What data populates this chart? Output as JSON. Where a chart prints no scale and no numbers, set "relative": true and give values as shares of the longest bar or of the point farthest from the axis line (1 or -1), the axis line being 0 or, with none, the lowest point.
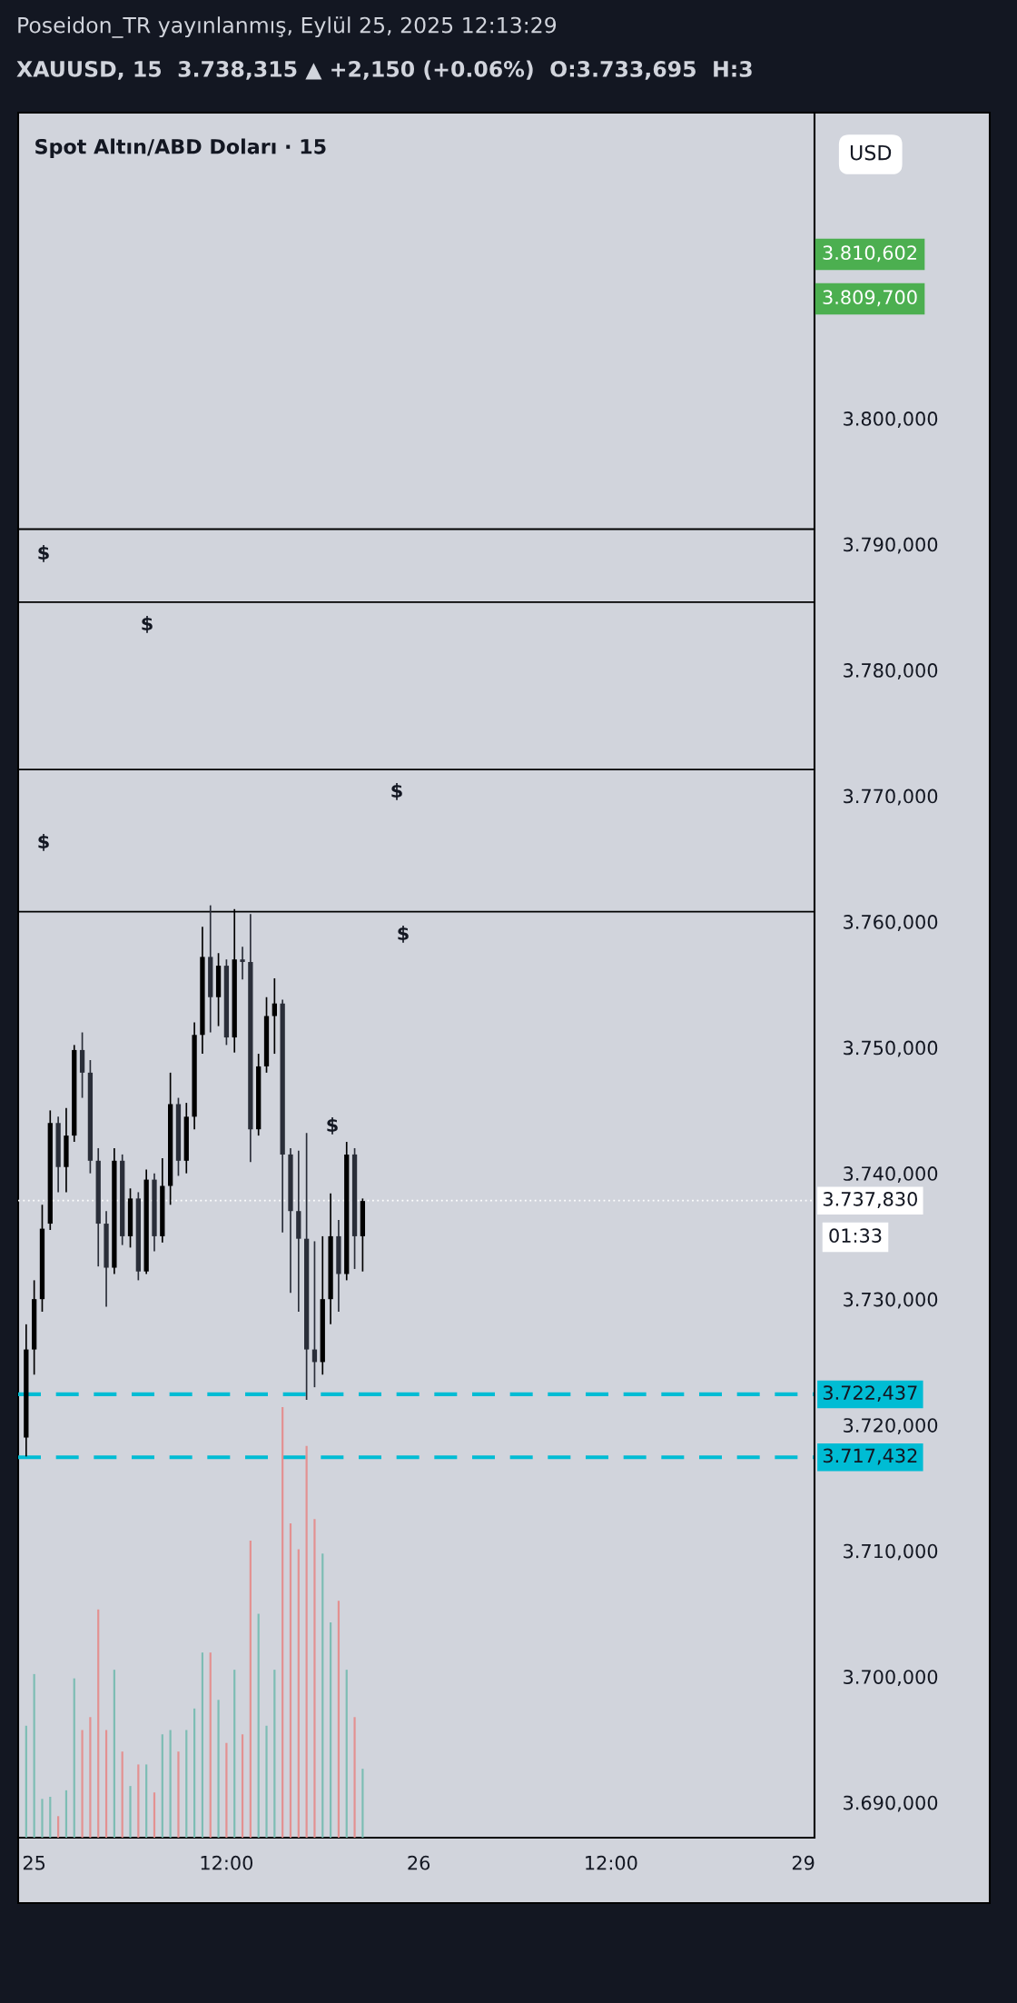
{
  "chart_data": [
    {
      "type": "candlestick",
      "title": "Spot Altın/ABD Doları · 15",
      "annotations": [
        "Poseidon_TR yayınlanmış, Eylül 25, 2025 12:13:29",
        "XAUUSD, 15  3.738,315 ▲ +2,150 (+0.06%)  O:3.733,695  H:3",
        "USD",
        "01:33",
        "$",
        "$",
        "$",
        "$",
        "$",
        "$",
        "3.810,602",
        "3.809,700"
      ],
      "categories": [
        null,
        "25",
        null,
        null,
        null,
        null,
        null,
        null,
        null,
        null,
        null,
        null,
        null,
        null,
        null,
        null,
        null,
        null,
        null,
        null,
        null,
        null,
        null,
        null,
        null,
        "12:00",
        null,
        null,
        null,
        null,
        null,
        null,
        null,
        null,
        null,
        null,
        null,
        null,
        null,
        null,
        null,
        null,
        null,
        null,
        null,
        null,
        null,
        null,
        null,
        "26",
        null,
        null,
        null,
        null,
        null,
        null,
        null,
        null,
        null,
        null,
        null,
        null,
        null,
        null,
        null,
        null,
        null,
        null,
        null,
        null,
        null,
        null,
        null,
        "12:00",
        null,
        null,
        null,
        null,
        null,
        null,
        null,
        null,
        null,
        null,
        null,
        null,
        null,
        null,
        null,
        null,
        null,
        null,
        null,
        null,
        null,
        null,
        null,
        "29",
        null
      ],
      "ohlc": [
        [
          3719,
          3728,
          3717.5,
          3726
        ],
        [
          3726,
          3731.5,
          3724,
          3730
        ],
        [
          3730,
          3737.5,
          3729,
          3735.6
        ],
        [
          3736,
          3745,
          3735.5,
          3744
        ],
        [
          3744,
          3744.5,
          3738.5,
          3740.5
        ],
        [
          3740.5,
          3745.2,
          3738.5,
          3743
        ],
        [
          3743,
          3750.2,
          3742.5,
          3749.8
        ],
        [
          3749.8,
          3751.2,
          3746,
          3748
        ],
        [
          3748,
          3749,
          3740,
          3741
        ],
        [
          3741,
          3742,
          3732.6,
          3736
        ],
        [
          3736,
          3737,
          3729.4,
          3732.5
        ],
        [
          3732.5,
          3742,
          3732,
          3741
        ],
        [
          3741,
          3741.5,
          3734.3,
          3735
        ],
        [
          3735,
          3738.8,
          3734.1,
          3738
        ],
        [
          3738,
          3738.5,
          3731.5,
          3732.2
        ],
        [
          3732.2,
          3740.3,
          3732,
          3739.5
        ],
        [
          3739.5,
          3740,
          3733.8,
          3735
        ],
        [
          3735,
          3741.2,
          3734.5,
          3739
        ],
        [
          3739,
          3748,
          3737.5,
          3745.5
        ],
        [
          3745.5,
          3746,
          3739.8,
          3741
        ],
        [
          3741,
          3745.6,
          3740,
          3744.5
        ],
        [
          3744.5,
          3752,
          3743.5,
          3751
        ],
        [
          3751,
          3759.6,
          3749.5,
          3757.2
        ],
        [
          3757.2,
          3761.3,
          3751.2,
          3754
        ],
        [
          3754,
          3757.5,
          3751.7,
          3756.5
        ],
        [
          3756.5,
          3757,
          3750.2,
          3750.8
        ],
        [
          3750.8,
          3761,
          3749.6,
          3757
        ],
        [
          3757,
          3758,
          3755.4,
          3756.8
        ],
        [
          3756.8,
          3760.6,
          3740.9,
          3743.5
        ],
        [
          3743.5,
          3749.5,
          3743,
          3748.5
        ],
        [
          3748.5,
          3754,
          3748,
          3752.5
        ],
        [
          3752.5,
          3755.5,
          3749.5,
          3753.5
        ],
        [
          3753.5,
          3753.8,
          3735.3,
          3741.5
        ],
        [
          3741.5,
          3742,
          3730.5,
          3737
        ],
        [
          3737,
          3741.8,
          3729,
          3734.8
        ],
        [
          3734.8,
          3743.2,
          3722,
          3726
        ],
        [
          3726,
          3734.6,
          3723,
          3725
        ],
        [
          3725,
          3735,
          3724,
          3730
        ],
        [
          3730,
          3738.4,
          3728,
          3735
        ],
        [
          3735,
          3736.3,
          3729,
          3732
        ],
        [
          3732,
          3742.5,
          3731.5,
          3741.5
        ],
        [
          3741.5,
          3742,
          3732.4,
          3735
        ],
        [
          3735,
          3738,
          3732.2,
          3737.8
        ],
        null,
        null,
        null,
        null,
        null,
        null,
        null,
        null,
        null,
        null,
        null,
        null,
        null,
        null,
        null,
        null,
        null,
        null,
        null,
        null,
        null,
        null,
        null,
        null,
        null,
        null,
        null,
        null,
        null,
        null,
        null,
        null,
        null,
        null,
        null,
        null,
        null,
        null,
        null,
        null,
        null,
        null,
        null,
        null,
        null,
        null,
        null,
        null,
        null,
        null,
        null,
        null,
        null,
        null,
        null,
        null
      ],
      "colors": [
        "#000000",
        "#000000",
        "#000000",
        "#000000",
        "#2a2e39",
        "#000000",
        "#000000",
        "#2a2e39",
        "#2a2e39",
        "#2a2e39",
        "#2a2e39",
        "#000000",
        "#2a2e39",
        "#000000",
        "#2a2e39",
        "#000000",
        "#2a2e39",
        "#000000",
        "#000000",
        "#2a2e39",
        "#000000",
        "#000000",
        "#000000",
        "#2a2e39",
        "#000000",
        "#2a2e39",
        "#000000",
        "#2a2e39",
        "#2a2e39",
        "#000000",
        "#000000",
        "#000000",
        "#2a2e39",
        "#2a2e39",
        "#2a2e39",
        "#2a2e39",
        "#2a2e39",
        "#000000",
        "#000000",
        "#2a2e39",
        "#000000",
        "#2a2e39",
        "#000000",
        null,
        null,
        null,
        null,
        null,
        null,
        null,
        null,
        null,
        null,
        null,
        null,
        null,
        null,
        null,
        null,
        null,
        null,
        null,
        null,
        null,
        null,
        null,
        null,
        null,
        null,
        null,
        null,
        null,
        null,
        null,
        null,
        null,
        null,
        null,
        null,
        null,
        null,
        null,
        null,
        null,
        null,
        null,
        null,
        null,
        null,
        null,
        null,
        null,
        null,
        null,
        null,
        null,
        null,
        null,
        null
      ],
      "ylim": [
        3687.2,
        3824.3
      ],
      "yticks": [
        {
          "value": 3690,
          "label": "3.690,000"
        },
        {
          "value": 3700,
          "label": "3.700,000"
        },
        {
          "value": 3710,
          "label": "3.710,000"
        },
        {
          "value": 3720,
          "label": "3.720,000"
        },
        {
          "value": 3730,
          "label": "3.730,000"
        },
        {
          "value": 3740,
          "label": "3.740,000"
        },
        {
          "value": 3750,
          "label": "3.750,000"
        },
        {
          "value": 3760,
          "label": "3.760,000"
        },
        {
          "value": 3770,
          "label": "3.770,000"
        },
        {
          "value": 3780,
          "label": "3.780,000"
        },
        {
          "value": 3790,
          "label": "3.790,000"
        },
        {
          "value": 3800,
          "label": "3.800,000"
        }
      ],
      "ref_lines": [
        {
          "axis": "y",
          "value": 3722.437,
          "label": "3.722,437",
          "color": "#00bcd4",
          "line_style": "dashed"
        },
        {
          "axis": "y",
          "value": 3717.432,
          "label": "3.717,432",
          "color": "#00bcd4",
          "line_style": "dashed"
        },
        {
          "axis": "y",
          "value": 3737.83,
          "label": "3.737,830",
          "color": "#ffffff",
          "line_style": "dotted"
        },
        {
          "axis": "y",
          "value": 3791.2,
          "color": "#000000",
          "line_style": "solid"
        },
        {
          "axis": "y",
          "value": 3785.4,
          "color": "#000000",
          "line_style": "solid"
        },
        {
          "axis": "y",
          "value": 3772.1,
          "color": "#000000",
          "line_style": "solid"
        },
        {
          "axis": "y",
          "value": 3760.8,
          "color": "#000000",
          "line_style": "solid"
        }
      ],
      "grid": false
    },
    {
      "type": "bar",
      "relative": true,
      "categories": [
        null,
        null,
        null,
        null,
        null,
        null,
        null,
        null,
        null,
        null,
        null,
        null,
        null,
        null,
        null,
        null,
        null,
        null,
        null,
        null,
        null,
        null,
        null,
        null,
        null,
        null,
        null,
        null,
        null,
        null,
        null,
        null,
        null,
        null,
        null,
        null,
        null,
        null,
        null,
        null,
        null,
        null,
        null,
        null,
        null,
        null,
        null,
        null,
        null,
        null,
        null,
        null,
        null,
        null,
        null,
        null,
        null,
        null,
        null,
        null,
        null,
        null,
        null,
        null,
        null,
        null,
        null,
        null,
        null,
        null,
        null,
        null,
        null,
        null,
        null,
        null,
        null,
        null,
        null,
        null,
        null,
        null,
        null,
        null,
        null,
        null,
        null,
        null,
        null,
        null,
        null,
        null,
        null,
        null,
        null,
        null,
        null,
        null,
        null
      ],
      "values": [
        0.26,
        0.38,
        0.09,
        0.095,
        0.05,
        0.11,
        0.37,
        0.25,
        0.28,
        0.53,
        0.25,
        0.39,
        0.2,
        0.12,
        0.17,
        0.17,
        0.105,
        0.24,
        0.25,
        0.2,
        0.25,
        0.3,
        0.43,
        0.43,
        0.32,
        0.22,
        0.39,
        0.24,
        0.69,
        0.52,
        0.26,
        0.39,
        1.0,
        0.73,
        0.67,
        0.91,
        0.74,
        0.66,
        0.5,
        0.55,
        0.39,
        0.28,
        0.16,
        null,
        null,
        null,
        null,
        null,
        null,
        null,
        null,
        null,
        null,
        null,
        null,
        null,
        null,
        null,
        null,
        null,
        null,
        null,
        null,
        null,
        null,
        null,
        null,
        null,
        null,
        null,
        null,
        null,
        null,
        null,
        null,
        null,
        null,
        null,
        null,
        null,
        null,
        null,
        null,
        null,
        null,
        null,
        null,
        null,
        null,
        null,
        null,
        null,
        null,
        null,
        null,
        null,
        null,
        null,
        null
      ],
      "colors": [
        "#7dbdb4",
        "#7dbdb4",
        "#7dbdb4",
        "#7dbdb4",
        "#e39191",
        "#7dbdb4",
        "#7dbdb4",
        "#e39191",
        "#e39191",
        "#e39191",
        "#e39191",
        "#7dbdb4",
        "#e39191",
        "#7dbdb4",
        "#e39191",
        "#7dbdb4",
        "#e39191",
        "#7dbdb4",
        "#7dbdb4",
        "#e39191",
        "#7dbdb4",
        "#7dbdb4",
        "#7dbdb4",
        "#e39191",
        "#7dbdb4",
        "#e39191",
        "#7dbdb4",
        "#e39191",
        "#e39191",
        "#7dbdb4",
        "#7dbdb4",
        "#7dbdb4",
        "#e39191",
        "#e39191",
        "#e39191",
        "#e39191",
        "#e39191",
        "#7dbdb4",
        "#7dbdb4",
        "#e39191",
        "#7dbdb4",
        "#e39191",
        "#7dbdb4",
        null,
        null,
        null,
        null,
        null,
        null,
        null,
        null,
        null,
        null,
        null,
        null,
        null,
        null,
        null,
        null,
        null,
        null,
        null,
        null,
        null,
        null,
        null,
        null,
        null,
        null,
        null,
        null,
        null,
        null,
        null,
        null,
        null,
        null,
        null,
        null,
        null,
        null,
        null,
        null,
        null,
        null,
        null,
        null,
        null,
        null,
        null,
        null,
        null,
        null,
        null,
        null,
        null,
        null,
        null,
        null
      ]
    }
  ]
}
